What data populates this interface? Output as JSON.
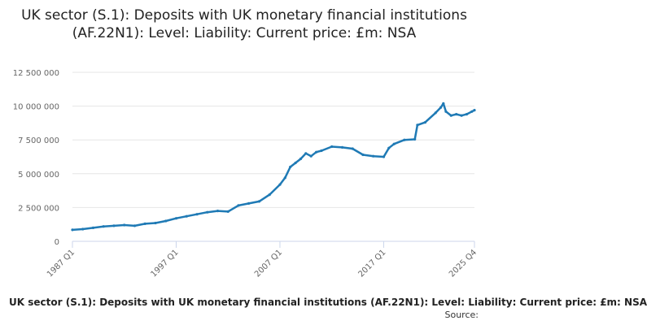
{
  "title": "UK sector (S.1): Deposits with UK monetary financial institutions (AF.22N1): Level: Liability: Current price: £m: NSA",
  "legend_label": "UK sector (S.1): Deposits with UK monetary financial institutions (AF.22N1): Level: Liability: Current price: £m: NSA",
  "source_label": "Source:",
  "colors": {
    "series": "#1f7ab5",
    "grid": "#e6e6e6",
    "axis": "#ccd6eb",
    "text": "#666666"
  },
  "chart_data": {
    "type": "line",
    "title": "UK sector (S.1): Deposits with UK monetary financial institutions (AF.22N1): Level: Liability: Current price: £m: NSA",
    "xlabel": "",
    "ylabel": "",
    "ylim": [
      0,
      12500000
    ],
    "yticks": [
      0,
      2500000,
      5000000,
      7500000,
      10000000,
      12500000
    ],
    "ytick_labels": [
      "0",
      "2 500 000",
      "5 000 000",
      "7 500 000",
      "10 000 000",
      "12 500 000"
    ],
    "xtick_labels": [
      "1987 Q1",
      "1997 Q1",
      "2007 Q1",
      "2017 Q1",
      "2025 Q4"
    ],
    "x_start": "1987 Q1",
    "x_end": "2025 Q4",
    "grid": true,
    "legend": "bottom",
    "series": [
      {
        "name": "UK sector (S.1): Deposits with UK monetary financial institutions (AF.22N1): Level: Liability: Current price: £m: NSA",
        "x": [
          "1987 Q1",
          "1988 Q1",
          "1989 Q1",
          "1990 Q1",
          "1991 Q1",
          "1992 Q1",
          "1993 Q1",
          "1994 Q1",
          "1995 Q1",
          "1996 Q1",
          "1997 Q1",
          "1998 Q1",
          "1999 Q1",
          "2000 Q1",
          "2001 Q1",
          "2002 Q1",
          "2003 Q1",
          "2004 Q1",
          "2005 Q1",
          "2006 Q1",
          "2007 Q1",
          "2007 Q3",
          "2008 Q1",
          "2008 Q3",
          "2009 Q1",
          "2009 Q3",
          "2010 Q1",
          "2010 Q3",
          "2011 Q1",
          "2012 Q1",
          "2013 Q1",
          "2014 Q1",
          "2015 Q1",
          "2016 Q1",
          "2017 Q1",
          "2017 Q3",
          "2018 Q1",
          "2019 Q1",
          "2020 Q1",
          "2020 Q2",
          "2021 Q1",
          "2022 Q1",
          "2022 Q3",
          "2022 Q4",
          "2023 Q1",
          "2023 Q3",
          "2024 Q1",
          "2024 Q3",
          "2025 Q1",
          "2025 Q3",
          "2025 Q4"
        ],
        "values": [
          850000,
          900000,
          1000000,
          1100000,
          1150000,
          1200000,
          1150000,
          1300000,
          1350000,
          1500000,
          1700000,
          1850000,
          2000000,
          2150000,
          2250000,
          2200000,
          2650000,
          2800000,
          2950000,
          3450000,
          4200000,
          4700000,
          5500000,
          5800000,
          6100000,
          6500000,
          6300000,
          6600000,
          6700000,
          7000000,
          6950000,
          6850000,
          6400000,
          6300000,
          6250000,
          6900000,
          7200000,
          7500000,
          7550000,
          8600000,
          8800000,
          9500000,
          9900000,
          10200000,
          9600000,
          9300000,
          9400000,
          9300000,
          9400000,
          9600000,
          9700000
        ]
      }
    ]
  }
}
